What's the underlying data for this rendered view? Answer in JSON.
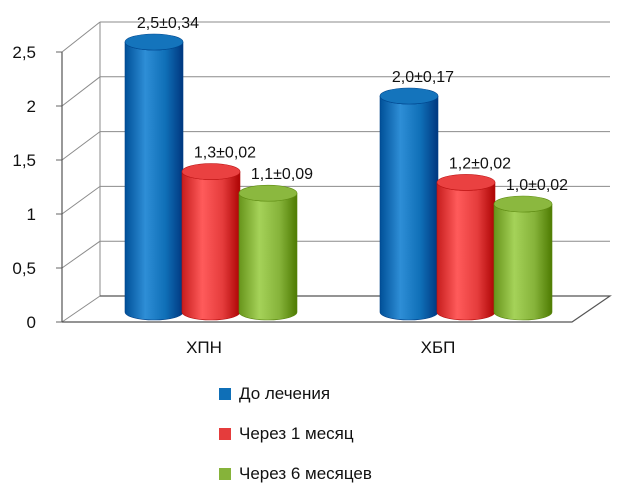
{
  "chart_data": {
    "type": "bar",
    "categories": [
      "ХПН",
      "ХБП"
    ],
    "series": [
      {
        "name": "До лечения",
        "values": [
          2.5,
          2.0
        ],
        "labels": [
          "2,5±0,34",
          "2,0±0,17"
        ],
        "color": "#0f6fb7"
      },
      {
        "name": "Через 1 месяц",
        "values": [
          1.3,
          1.2
        ],
        "labels": [
          "1,3±0,02",
          "1,2±0,02"
        ],
        "color": "#e53c3c"
      },
      {
        "name": "Через 6 месяцев",
        "values": [
          1.1,
          1.0
        ],
        "labels": [
          "1,1±0,09",
          "1,0±0,02"
        ],
        "color": "#86b33a"
      }
    ],
    "ylim": [
      0,
      2.5
    ],
    "yticks": [
      "0",
      "0,5",
      "1",
      "1,5",
      "2",
      "2,5"
    ],
    "grid": true,
    "legend_position": "bottom",
    "title": "",
    "xlabel": "",
    "ylabel": ""
  }
}
